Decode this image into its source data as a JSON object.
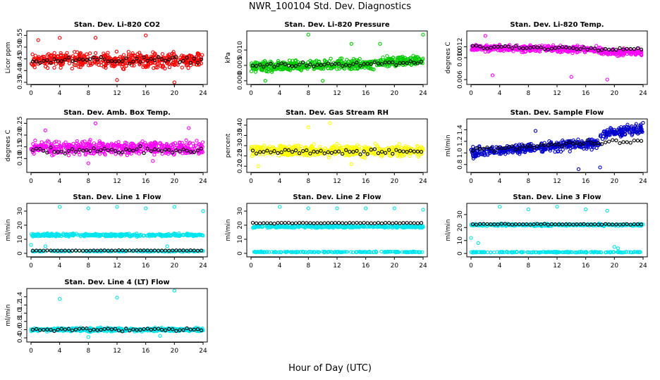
{
  "figure": {
    "title": "NWR_100104  Std. Dev. Diagnostics",
    "xlabel": "Hour of Day (UTC)"
  },
  "colors": {
    "highlight": "#000000"
  },
  "chart_data": [
    {
      "type": "scatter",
      "title": "Stan. Dev. Li-820 CO2",
      "ylabel": "Licor ppm",
      "xlim": [
        0,
        24
      ],
      "ylim": [
        0.35,
        0.56
      ],
      "yticks": [
        "0.35",
        "0.40",
        "0.45",
        "0.50",
        "0.55"
      ],
      "yvals": [
        0.35,
        0.4,
        0.45,
        0.5,
        0.55
      ],
      "xticks": [
        "0",
        "4",
        "8",
        "12",
        "16",
        "20",
        "24"
      ],
      "color": "#ff0000",
      "pattern": {
        "base": 0.445,
        "spread": 0.045,
        "trend": 0,
        "n": 500
      },
      "outliers": [
        [
          4,
          0.54
        ],
        [
          12,
          0.36
        ],
        [
          16,
          0.55
        ],
        [
          1,
          0.53
        ],
        [
          20,
          0.35
        ],
        [
          9,
          0.54
        ]
      ],
      "hourly_mean": {
        "base": 0.445,
        "spread": 0.02
      }
    },
    {
      "type": "scatter",
      "title": "Stan. Dev. Li-820 Pressure",
      "ylabel": "kPa",
      "xlim": [
        0,
        24
      ],
      "ylim": [
        -0.0005,
        0.0155
      ],
      "yticks": [
        "0.000",
        "0.005",
        "0.010"
      ],
      "yvals": [
        0,
        0.005,
        0.01
      ],
      "xticks": [
        "0",
        "4",
        "8",
        "12",
        "16",
        "20",
        "24"
      ],
      "color": "#00cc00",
      "pattern": {
        "base": 0.0045,
        "spread": 0.0025,
        "trend": 0.0015,
        "n": 520
      },
      "outliers": [
        [
          8,
          0.015
        ],
        [
          24,
          0.015
        ],
        [
          2,
          0.0
        ],
        [
          10,
          0.0
        ],
        [
          14,
          0.012
        ],
        [
          18,
          0.012
        ]
      ],
      "hourly_mean": {
        "base": 0.005,
        "spread": 0.001
      }
    },
    {
      "type": "scatter",
      "title": "Stan. Dev. Li-820 Temp.",
      "ylabel": "degrees C",
      "xlim": [
        0,
        24
      ],
      "ylim": [
        0.0055,
        0.0145
      ],
      "yticks": [
        "0.006",
        "0.010",
        "0.012"
      ],
      "yvals": [
        0.006,
        0.01,
        0.012
      ],
      "xticks": [
        "0",
        "4",
        "8",
        "12",
        "16",
        "20",
        "24"
      ],
      "color": "#ff00ff",
      "pattern": {
        "base": 0.0118,
        "spread": 0.0009,
        "trend": -0.0006,
        "n": 520
      },
      "outliers": [
        [
          3,
          0.0068
        ],
        [
          14,
          0.0065
        ],
        [
          19,
          0.006
        ],
        [
          2,
          0.014
        ]
      ],
      "hourly_mean": {
        "base": 0.012,
        "spread": 0.0005
      }
    },
    {
      "type": "scatter",
      "title": "Stan. Dev. Amb. Box Temp.",
      "ylabel": "degrees C",
      "xlim": [
        0,
        24
      ],
      "ylim": [
        0.05,
        0.26
      ],
      "yticks": [
        "0.10",
        "0.15",
        "0.20",
        "0.25"
      ],
      "yvals": [
        0.1,
        0.15,
        0.2,
        0.25
      ],
      "xticks": [
        "0",
        "4",
        "8",
        "12",
        "16",
        "20",
        "24"
      ],
      "color": "#ff00ff",
      "pattern": {
        "base": 0.145,
        "spread": 0.04,
        "trend": 0,
        "n": 520
      },
      "outliers": [
        [
          2,
          0.22
        ],
        [
          9,
          0.25
        ],
        [
          22,
          0.23
        ],
        [
          8,
          0.08
        ],
        [
          17,
          0.09
        ]
      ],
      "hourly_mean": {
        "base": 0.135,
        "spread": 0.02
      }
    },
    {
      "type": "scatter",
      "title": "Stan. Dev. Gas Stream RH",
      "ylabel": "percent",
      "xlim": [
        0,
        24
      ],
      "ylim": [
        0.18,
        0.42
      ],
      "yticks": [
        "0.20",
        "0.25",
        "0.30",
        "0.35",
        "0.40"
      ],
      "yvals": [
        0.2,
        0.25,
        0.3,
        0.35,
        0.4
      ],
      "xticks": [
        "0",
        "4",
        "8",
        "12",
        "16",
        "20",
        "24"
      ],
      "color": "#ffff00",
      "pattern": {
        "base": 0.275,
        "spread": 0.04,
        "trend": 0,
        "n": 520
      },
      "outliers": [
        [
          11,
          0.41
        ],
        [
          8,
          0.39
        ],
        [
          1,
          0.2
        ],
        [
          14,
          0.21
        ]
      ],
      "hourly_mean": {
        "base": 0.27,
        "spread": 0.02
      }
    },
    {
      "type": "scatter",
      "title": "Stan. Dev. Sample Flow",
      "ylabel": "ml/min",
      "xlim": [
        0,
        24
      ],
      "ylim": [
        0.7,
        1.55
      ],
      "yticks": [
        "0.8",
        "1.0",
        "1.2",
        "1.4"
      ],
      "yvals": [
        0.8,
        1.0,
        1.2,
        1.4
      ],
      "xticks": [
        "0",
        "4",
        "8",
        "12",
        "16",
        "20",
        "24"
      ],
      "color": "#0000cc",
      "pattern": {
        "base": 1.0,
        "spread": 0.12,
        "trend": 0.3,
        "n": 520
      },
      "outliers": [
        [
          15,
          0.72
        ],
        [
          24,
          1.52
        ],
        [
          9,
          1.38
        ],
        [
          18,
          0.75
        ]
      ],
      "hourly_mean": {
        "base": 1.05,
        "spread": 0.06
      }
    },
    {
      "type": "scatter",
      "title": "Stan. Dev. Line 1 Flow",
      "ylabel": "ml/min",
      "xlim": [
        0,
        24
      ],
      "ylim": [
        -1,
        34
      ],
      "yticks": [
        "0",
        "10",
        "20",
        "30"
      ],
      "yvals": [
        0,
        10,
        20,
        30
      ],
      "xticks": [
        "0",
        "4",
        "8",
        "12",
        "16",
        "20",
        "24"
      ],
      "color": "#00e5ee",
      "pattern": {
        "base": 13,
        "spread": 1.5,
        "trend": 0,
        "n": 360
      },
      "low_band": {
        "base": 1.5,
        "spread": 0.5,
        "n": 160
      },
      "outliers": [
        [
          4,
          33
        ],
        [
          8,
          32
        ],
        [
          12,
          33
        ],
        [
          16,
          32
        ],
        [
          20,
          33
        ],
        [
          24,
          30
        ],
        [
          0,
          6
        ],
        [
          2,
          5
        ],
        [
          19,
          5
        ]
      ],
      "hourly_mean": {
        "base": 2,
        "spread": 0.2
      }
    },
    {
      "type": "scatter",
      "title": "Stan. Dev. Line 2 Flow",
      "ylabel": "ml/min",
      "xlim": [
        0,
        24
      ],
      "ylim": [
        -1,
        34
      ],
      "yticks": [
        "0",
        "10",
        "20",
        "30"
      ],
      "yvals": [
        0,
        10,
        20,
        30
      ],
      "xticks": [
        "0",
        "4",
        "8",
        "12",
        "16",
        "20",
        "24"
      ],
      "color": "#00e5ee",
      "pattern": {
        "base": 19,
        "spread": 1.2,
        "trend": 0,
        "n": 360
      },
      "low_band": {
        "base": 1.0,
        "spread": 0.5,
        "n": 180
      },
      "outliers": [
        [
          4,
          33
        ],
        [
          8,
          32
        ],
        [
          12,
          32
        ],
        [
          16,
          32
        ],
        [
          20,
          32
        ],
        [
          24,
          31
        ]
      ],
      "hourly_mean": {
        "base": 21.5,
        "spread": 0.4
      }
    },
    {
      "type": "scatter",
      "title": "Stan. Dev. Line 3 Flow",
      "ylabel": "ml/min",
      "xlim": [
        0,
        24
      ],
      "ylim": [
        -1,
        37
      ],
      "yticks": [
        "0",
        "10",
        "20",
        "30"
      ],
      "yvals": [
        0,
        10,
        20,
        30
      ],
      "xticks": [
        "0",
        "4",
        "8",
        "12",
        "16",
        "20",
        "24"
      ],
      "color": "#00e5ee",
      "pattern": {
        "base": 22,
        "spread": 1.2,
        "trend": 0,
        "n": 360
      },
      "low_band": {
        "base": 1.0,
        "spread": 0.5,
        "n": 180
      },
      "outliers": [
        [
          4,
          36
        ],
        [
          8,
          34
        ],
        [
          12,
          36
        ],
        [
          16,
          34
        ],
        [
          19,
          33
        ],
        [
          20,
          5
        ],
        [
          20.5,
          4
        ],
        [
          0,
          12
        ],
        [
          1,
          8
        ]
      ],
      "hourly_mean": {
        "base": 22.5,
        "spread": 0.5
      }
    },
    {
      "type": "scatter",
      "title": "Stan. Dev. Line 4 (LT) Flow",
      "ylabel": "ml/min",
      "xlim": [
        0,
        24
      ],
      "ylim": [
        0.35,
        1.55
      ],
      "yticks": [
        "0.4",
        "0.6",
        "0.8",
        "1.0",
        "1.2",
        "1.4"
      ],
      "yvals": [
        0.4,
        0.6,
        0.8,
        1.0,
        1.2,
        1.4
      ],
      "xticks": [
        "0",
        "4",
        "8",
        "12",
        "16",
        "20",
        "24"
      ],
      "color": "#00e5ee",
      "pattern": {
        "base": 0.6,
        "spread": 0.06,
        "trend": 0,
        "n": 520
      },
      "outliers": [
        [
          4,
          1.35
        ],
        [
          12,
          1.38
        ],
        [
          20,
          1.55
        ],
        [
          8,
          0.42
        ],
        [
          18,
          0.45
        ]
      ],
      "hourly_mean": {
        "base": 0.6,
        "spread": 0.05
      }
    }
  ]
}
